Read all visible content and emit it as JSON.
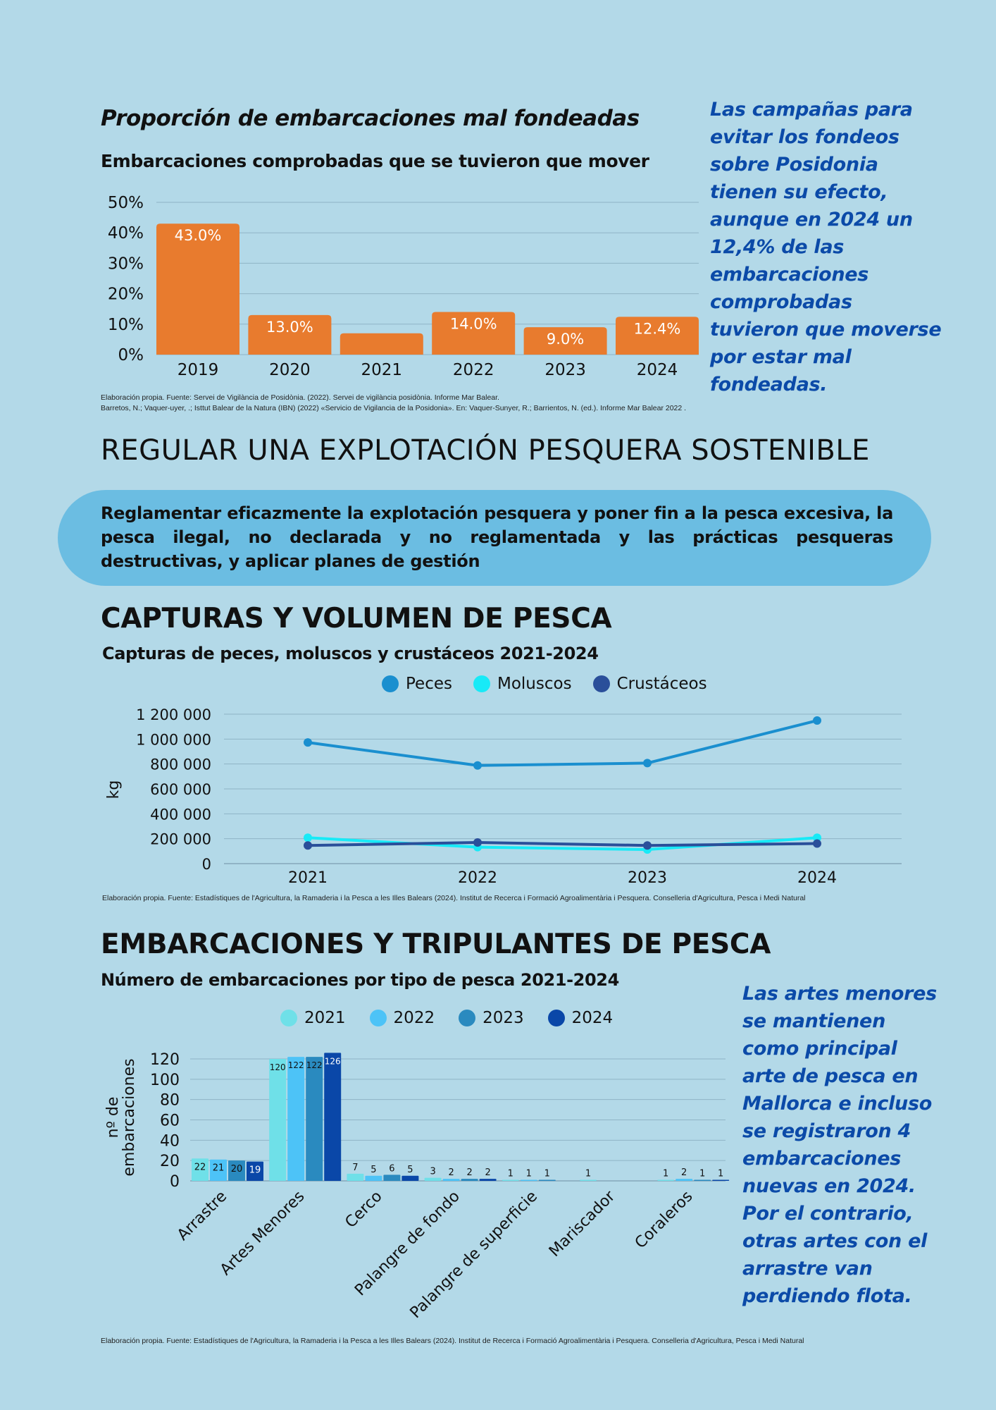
{
  "section1": {
    "title": "Proporción de embarcaciones mal fondeadas",
    "subtitle": "Embarcaciones comprobadas que se tuvieron que mover",
    "side_text": "Las campañas para evitar los fondeos sobre Posidonia tienen su efecto, aunque en 2024 un 12,4% de las embarcaciones comprobadas tuvieron que moverse por estar mal fondeadas.",
    "source_line1": "Elaboración propia. Fuente: Servei de Vigilància de Posidònia. (2022). Servei de vigilància posidònia. Informe Mar Balear.",
    "source_line2": "Barretos, N.; Vaquer-uyer, .; Isttut Balear de la Natura (IBN) (2022) «Servicio de Vigilancia de la Posidonia». En: Vaquer-Sunyer, R.; Barrientos, N. (ed.). Informe Mar Balear 2022 ."
  },
  "section2": {
    "heading": "REGULAR UNA EXPLOTACIÓN PESQUERA SOSTENIBLE",
    "pill_text": "Reglamentar eficazmente la explotación pesquera y poner fin a la pesca excesiva, la pesca ilegal, no declarada y no reglamentada y las prácticas pesqueras destructivas, y aplicar planes de gestión"
  },
  "section3": {
    "heading": "CAPTURAS Y VOLUMEN DE PESCA",
    "subtitle": "Capturas de peces, moluscos y crustáceos 2021-2024",
    "source": "Elaboración propia. Fuente: Estadístiques de l'Agricultura, la Ramaderia i la Pesca a les Illes Balears (2024). Institut de Recerca i Formació Agroalimentària i Pesquera. Conselleria d'Agricultura, Pesca i Medi Natural"
  },
  "section4": {
    "heading": "EMBARCACIONES Y TRIPULANTES DE PESCA",
    "subtitle": "Número de embarcaciones por tipo de pesca 2021-2024",
    "side_text": "Las artes menores se mantienen como principal arte de pesca en Mallorca e incluso se registraron 4 embarcaciones nuevas en 2024. Por el contrario, otras artes con el arrastre van perdiendo flota.",
    "source": "Elaboración propia. Fuente: Estadístiques de l'Agricultura, la Ramaderia i la Pesca a les Illes Balears (2024). Institut de Recerca i Formació Agroalimentària i Pesquera. Conselleria d'Agricultura, Pesca i Medi Natural"
  },
  "chart_data": [
    {
      "type": "bar",
      "categories": [
        "2019",
        "2020",
        "2021",
        "2022",
        "2023",
        "2024"
      ],
      "values": [
        43.0,
        13.0,
        7.0,
        14.0,
        9.0,
        12.4
      ],
      "data_labels": [
        "43.0%",
        "13.0%",
        "",
        "14.0%",
        "9.0%",
        "12.4%"
      ],
      "ylim": [
        0,
        50
      ],
      "yticks": [
        "0%",
        "10%",
        "20%",
        "30%",
        "40%",
        "50%"
      ],
      "color": "#e87b2e",
      "grid": true
    },
    {
      "type": "line",
      "x": [
        "2021",
        "2022",
        "2023",
        "2024"
      ],
      "ylabel": "kg",
      "ylim": [
        0,
        1200000
      ],
      "yticks": [
        "0",
        "200 000",
        "400 000",
        "600 000",
        "800 000",
        "1 000 000",
        "1 200 000"
      ],
      "legend_position": "top",
      "grid": true,
      "series": [
        {
          "name": "Peces",
          "color": "#1a8fcf",
          "values": [
            973000,
            788000,
            807000,
            1149000
          ]
        },
        {
          "name": "Moluscos",
          "color": "#18eaf7",
          "values": [
            208000,
            132000,
            113000,
            208000
          ]
        },
        {
          "name": "Crustáceos",
          "color": "#2a4f9a",
          "values": [
            146000,
            170000,
            146000,
            161000
          ]
        }
      ]
    },
    {
      "type": "bar",
      "categories": [
        "Arrastre",
        "Artes Menores",
        "Cerco",
        "Palangre de fondo",
        "Palangre de superficie",
        "Mariscador",
        "Coraleros"
      ],
      "ylabel": "nº de embarcaciones",
      "ylim": [
        0,
        120
      ],
      "yticks": [
        "0",
        "20",
        "40",
        "60",
        "80",
        "100",
        "120"
      ],
      "legend_position": "top",
      "grid": true,
      "series": [
        {
          "name": "2021",
          "color": "#6fe0e8",
          "values": [
            22,
            120,
            7,
            3,
            1,
            1,
            1
          ]
        },
        {
          "name": "2022",
          "color": "#4dc3f7",
          "values": [
            21,
            122,
            5,
            2,
            1,
            0,
            2
          ]
        },
        {
          "name": "2023",
          "color": "#2a8abf",
          "values": [
            20,
            122,
            6,
            2,
            1,
            0,
            1
          ]
        },
        {
          "name": "2024",
          "color": "#0a47a8",
          "values": [
            19,
            126,
            5,
            2,
            0,
            0,
            1
          ]
        }
      ]
    }
  ]
}
